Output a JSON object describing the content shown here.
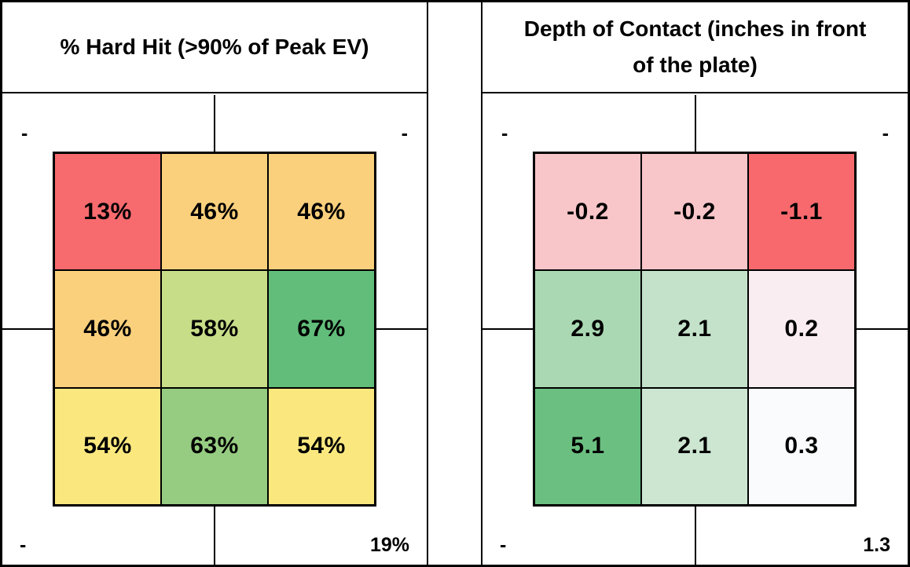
{
  "colors": {
    "ink": "#000000",
    "background": "#FFFFFF"
  },
  "panels": [
    {
      "title": "% Hard Hit (>90% of Peak EV)",
      "corners": {
        "top_left": "-",
        "top_right": "-",
        "bottom_left": "-",
        "bottom_right": "19%"
      },
      "cells": [
        {
          "value": "13%",
          "color": "#F76A6E"
        },
        {
          "value": "46%",
          "color": "#FBD07C"
        },
        {
          "value": "46%",
          "color": "#FBD07C"
        },
        {
          "value": "46%",
          "color": "#FBD07C"
        },
        {
          "value": "58%",
          "color": "#C7DD88"
        },
        {
          "value": "67%",
          "color": "#62BD7A"
        },
        {
          "value": "54%",
          "color": "#FAE87F"
        },
        {
          "value": "63%",
          "color": "#96CC81"
        },
        {
          "value": "54%",
          "color": "#FAE87F"
        }
      ]
    },
    {
      "title": "Depth of Contact (inches in front of the plate)",
      "corners": {
        "top_left": "-",
        "top_right": "-",
        "bottom_left": "-",
        "bottom_right": "1.3"
      },
      "cells": [
        {
          "value": "-0.2",
          "color": "#F8C5C8"
        },
        {
          "value": "-0.2",
          "color": "#F8C5C8"
        },
        {
          "value": "-1.1",
          "color": "#F7696D"
        },
        {
          "value": "2.9",
          "color": "#AAD8B3"
        },
        {
          "value": "2.1",
          "color": "#C4E2CA"
        },
        {
          "value": "0.2",
          "color": "#FAEDF1"
        },
        {
          "value": "5.1",
          "color": "#6BC081"
        },
        {
          "value": "2.1",
          "color": "#CCE6D1"
        },
        {
          "value": "0.3",
          "color": "#FAFBFC"
        }
      ]
    }
  ],
  "chart_data": [
    {
      "type": "heatmap",
      "title": "% Hard Hit (>90% of Peak EV)",
      "grid": "3x3 strike zone",
      "values": [
        [
          13,
          46,
          46
        ],
        [
          46,
          58,
          67
        ],
        [
          54,
          63,
          54
        ]
      ],
      "unit": "%",
      "corner_annotations": {
        "top_left": "-",
        "top_right": "-",
        "bottom_left": "-",
        "bottom_right": "19%"
      },
      "colorscale": "red-yellow-green (low to high)"
    },
    {
      "type": "heatmap",
      "title": "Depth of Contact (inches in front of the plate)",
      "grid": "3x3 strike zone",
      "values": [
        [
          -0.2,
          -0.2,
          -1.1
        ],
        [
          2.9,
          2.1,
          0.2
        ],
        [
          5.1,
          2.1,
          0.3
        ]
      ],
      "unit": "inches",
      "corner_annotations": {
        "top_left": "-",
        "top_right": "-",
        "bottom_left": "-",
        "bottom_right": "1.3"
      },
      "colorscale": "red-white-green (low to high)"
    }
  ]
}
